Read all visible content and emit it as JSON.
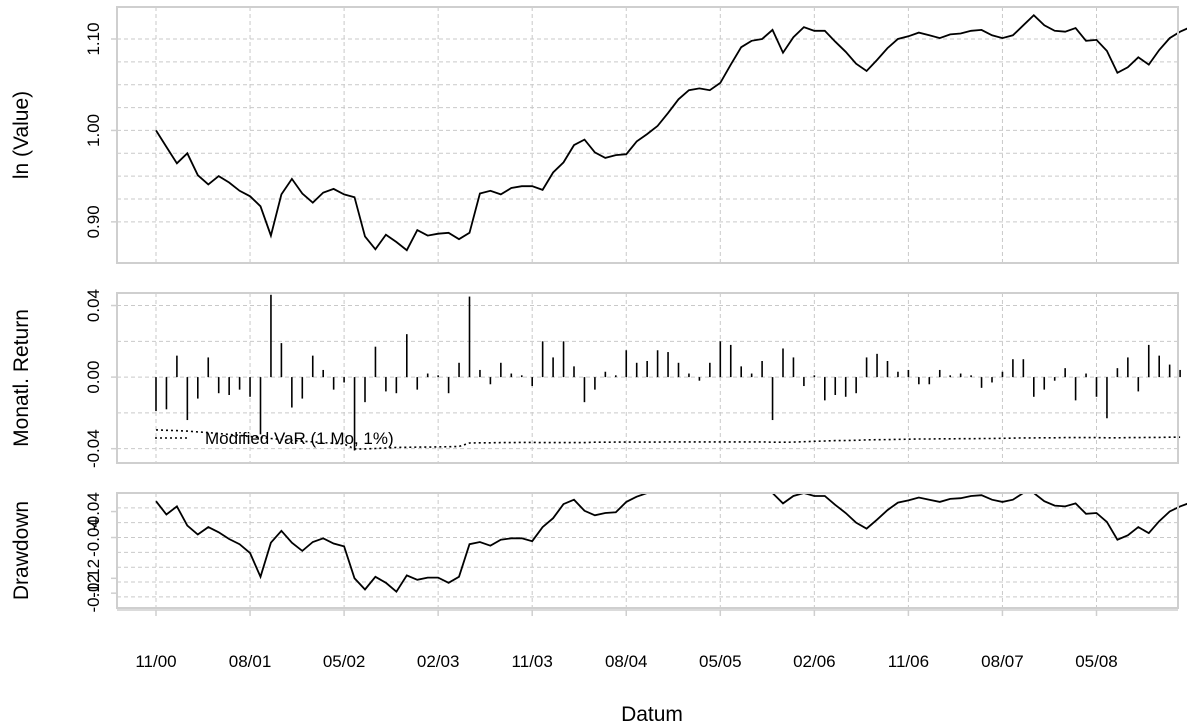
{
  "chart_data": [
    {
      "type": "line",
      "ylabel": "ln (Value)",
      "ylim": [
        0.855,
        1.135
      ],
      "yticks": [
        0.9,
        1.0,
        1.1
      ],
      "ytick_labels": [
        "0.90",
        "1.00",
        "1.10"
      ],
      "series": [
        {
          "values": [
            1.0,
            0.982,
            0.964,
            0.975,
            0.951,
            0.941,
            0.95,
            0.943,
            0.934,
            0.928,
            0.917,
            0.885,
            0.93,
            0.947,
            0.931,
            0.921,
            0.932,
            0.936,
            0.93,
            0.927,
            0.884,
            0.87,
            0.886,
            0.878,
            0.869,
            0.891,
            0.885,
            0.887,
            0.888,
            0.881,
            0.888,
            0.931,
            0.934,
            0.93,
            0.937,
            0.939,
            0.939,
            0.935,
            0.954,
            0.965,
            0.984,
            0.99,
            0.976,
            0.97,
            0.973,
            0.974,
            0.988,
            0.996,
            1.005,
            1.019,
            1.034,
            1.044,
            1.046,
            1.044,
            1.052,
            1.072,
            1.091,
            1.098,
            1.1,
            1.11,
            1.085,
            1.102,
            1.113,
            1.109,
            1.109,
            1.097,
            1.086,
            1.073,
            1.065,
            1.077,
            1.09,
            1.1,
            1.103,
            1.107,
            1.104,
            1.101,
            1.105,
            1.106,
            1.109,
            1.11,
            1.104,
            1.101,
            1.104,
            1.115,
            1.126,
            1.115,
            1.109,
            1.108,
            1.112,
            1.098,
            1.099,
            1.087,
            1.063,
            1.069,
            1.08,
            1.072,
            1.088,
            1.101,
            1.108,
            1.113,
            1.116
          ]
        }
      ]
    },
    {
      "type": "bar",
      "ylabel": "Monatl. Return",
      "ylim": [
        -0.048,
        0.047
      ],
      "yticks": [
        -0.04,
        0.0,
        0.04
      ],
      "ytick_labels": [
        "-0.04",
        "0.00",
        "0.04"
      ],
      "series": [
        {
          "name": "Return",
          "values": [
            -0.019,
            -0.018,
            0.012,
            -0.024,
            -0.012,
            0.011,
            -0.009,
            -0.01,
            -0.007,
            -0.011,
            -0.032,
            0.046,
            0.019,
            -0.017,
            -0.012,
            0.012,
            0.004,
            -0.007,
            -0.003,
            -0.041,
            -0.014,
            0.017,
            -0.008,
            -0.009,
            0.024,
            -0.007,
            0.002,
            0.001,
            -0.009,
            0.008,
            0.045,
            0.004,
            -0.004,
            0.008,
            0.002,
            0.001,
            -0.005,
            0.02,
            0.011,
            0.02,
            0.006,
            -0.014,
            -0.007,
            0.003,
            0.001,
            0.015,
            0.008,
            0.009,
            0.015,
            0.014,
            0.008,
            0.002,
            -0.002,
            0.008,
            0.02,
            0.018,
            0.006,
            0.002,
            0.009,
            -0.024,
            0.016,
            0.011,
            -0.005,
            0.001,
            -0.013,
            -0.01,
            -0.011,
            -0.009,
            0.011,
            0.013,
            0.009,
            0.003,
            0.004,
            -0.004,
            -0.004,
            0.004,
            0.001,
            0.002,
            0.001,
            -0.006,
            -0.003,
            0.003,
            0.01,
            0.01,
            -0.011,
            -0.007,
            -0.002,
            0.005,
            -0.013,
            0.002,
            -0.011,
            -0.023,
            0.005,
            0.011,
            -0.008,
            0.018,
            0.012,
            0.007,
            0.004
          ]
        },
        {
          "name": "Modified VaR (1 Mo, 1%)",
          "values": [
            -0.0295,
            -0.0297,
            -0.0299,
            -0.0302,
            -0.0306,
            -0.031,
            -0.0315,
            -0.032,
            -0.0326,
            -0.0332,
            -0.0338,
            -0.0343,
            -0.0348,
            -0.0353,
            -0.0358,
            -0.0362,
            -0.0366,
            -0.037,
            -0.0374,
            -0.0401,
            -0.0401,
            -0.0399,
            -0.0396,
            -0.0393,
            -0.0392,
            -0.0391,
            -0.0391,
            -0.039,
            -0.0389,
            -0.0388,
            -0.0368,
            -0.0367,
            -0.0367,
            -0.0366,
            -0.0366,
            -0.0365,
            -0.0365,
            -0.0366,
            -0.0366,
            -0.0366,
            -0.0366,
            -0.0366,
            -0.0364,
            -0.0364,
            -0.0363,
            -0.0363,
            -0.0363,
            -0.0363,
            -0.0363,
            -0.0362,
            -0.0362,
            -0.0362,
            -0.0362,
            -0.0362,
            -0.0362,
            -0.0362,
            -0.0362,
            -0.0362,
            -0.0362,
            -0.0364,
            -0.0364,
            -0.0363,
            -0.0361,
            -0.0359,
            -0.0357,
            -0.0355,
            -0.0354,
            -0.0353,
            -0.0351,
            -0.035,
            -0.0349,
            -0.0348,
            -0.0347,
            -0.0346,
            -0.0346,
            -0.0345,
            -0.0345,
            -0.0344,
            -0.0344,
            -0.0343,
            -0.0343,
            -0.0342,
            -0.0341,
            -0.034,
            -0.034,
            -0.0339,
            -0.0339,
            -0.0338,
            -0.0338,
            -0.0338,
            -0.0338,
            -0.0339,
            -0.0339,
            -0.0338,
            -0.0338,
            -0.0337,
            -0.0337,
            -0.0336,
            -0.0336
          ]
        }
      ],
      "legend": {
        "label": "Modified VaR (1 Mo, 1%)",
        "position": "bottom-left"
      }
    },
    {
      "type": "line",
      "ylabel": "Drawdown",
      "xlabel": "Datum",
      "ylim": [
        -0.155,
        0.0
      ],
      "yticks": [
        -0.04,
        -0.08,
        -0.12
      ],
      "ytick_labels": [
        "-0.04",
        "-0.04",
        "-0.12",
        "-0.12"
      ],
      "ytick_label_values": [
        -0.025,
        -0.06,
        -0.115,
        -0.135
      ],
      "series": [
        {
          "values": [
            -0.011,
            -0.029,
            -0.018,
            -0.044,
            -0.056,
            -0.046,
            -0.053,
            -0.062,
            -0.069,
            -0.081,
            -0.113,
            -0.067,
            -0.051,
            -0.067,
            -0.078,
            -0.066,
            -0.061,
            -0.068,
            -0.072,
            -0.115,
            -0.13,
            -0.113,
            -0.121,
            -0.133,
            -0.111,
            -0.117,
            -0.114,
            -0.114,
            -0.121,
            -0.113,
            -0.069,
            -0.066,
            -0.071,
            -0.063,
            -0.061,
            -0.061,
            -0.065,
            -0.046,
            -0.034,
            -0.015,
            -0.009,
            -0.024,
            -0.03,
            -0.027,
            -0.026,
            -0.012,
            -0.005,
            0.0,
            0.0,
            0.0,
            0.0,
            0.0,
            0.0,
            0.0,
            0.0,
            0.0,
            0.0,
            0.0,
            0.0,
            0.0,
            -0.014,
            -0.004,
            0.0,
            -0.004,
            -0.004,
            -0.016,
            -0.027,
            -0.04,
            -0.048,
            -0.036,
            -0.023,
            -0.013,
            -0.01,
            -0.006,
            -0.009,
            -0.012,
            -0.008,
            -0.007,
            -0.004,
            -0.003,
            -0.009,
            -0.012,
            -0.009,
            0.0,
            0.0,
            -0.011,
            -0.017,
            -0.018,
            -0.014,
            -0.028,
            -0.027,
            -0.039,
            -0.063,
            -0.057,
            -0.046,
            -0.054,
            -0.038,
            -0.025,
            -0.018,
            -0.013,
            -0.01
          ]
        }
      ]
    }
  ],
  "x_axis": {
    "label": "Datum",
    "tick_labels": [
      "11/00",
      "08/01",
      "05/02",
      "02/03",
      "11/03",
      "08/04",
      "05/05",
      "02/06",
      "11/06",
      "08/07",
      "05/08"
    ],
    "tick_indices": [
      0,
      9,
      18,
      27,
      36,
      45,
      54,
      63,
      72,
      81,
      90
    ]
  }
}
